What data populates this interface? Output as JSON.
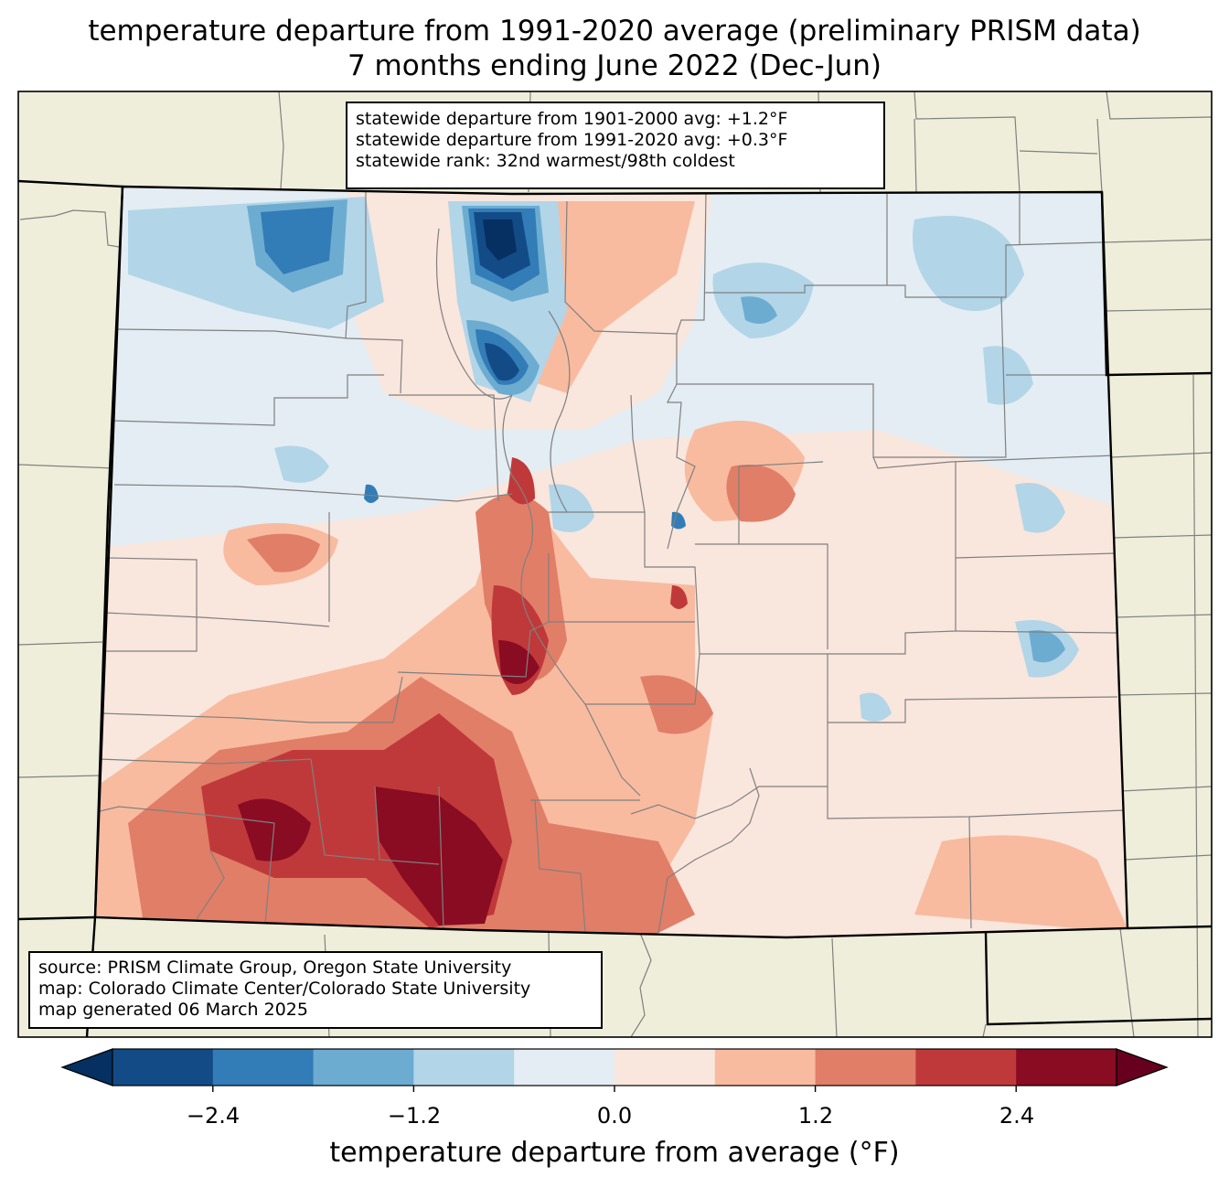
{
  "title": {
    "line1": "temperature departure from 1991-2020 average (preliminary PRISM data)",
    "line2": "7 months ending June 2022 (Dec-Jun)"
  },
  "stats_box": {
    "line1": "statewide departure from 1901-2000 avg: +1.2°F",
    "line2": "statewide departure from 1991-2020 avg: +0.3°F",
    "line3": "statewide rank: 32nd warmest/98th coldest"
  },
  "credit_box": {
    "line1": "source: PRISM Climate Group, Oregon State University",
    "line2": "map: Colorado Climate Center/Colorado State University",
    "line3": "map generated 06 March 2025"
  },
  "colorbar": {
    "label": "temperature departure from average (°F)",
    "ticks": [
      "−2.4",
      "−1.2",
      "0.0",
      "1.2",
      "2.4"
    ],
    "tick_values": [
      -2.4,
      -1.2,
      0.0,
      1.2,
      2.4
    ],
    "bounds": [
      -3.0,
      -2.4,
      -1.8,
      -1.2,
      -0.6,
      0.0,
      0.6,
      1.2,
      1.8,
      2.4,
      3.0
    ],
    "colors": [
      "#053061",
      "#134b87",
      "#327db7",
      "#6dacd1",
      "#b2d5e8",
      "#e3edf3",
      "#f9e6dd",
      "#f8bba0",
      "#e17e68",
      "#c0393a",
      "#890c22",
      "#67001f"
    ]
  },
  "colors": {
    "land_background": "#efeedb",
    "state_border": "#000000",
    "county_line": "#808080"
  }
}
